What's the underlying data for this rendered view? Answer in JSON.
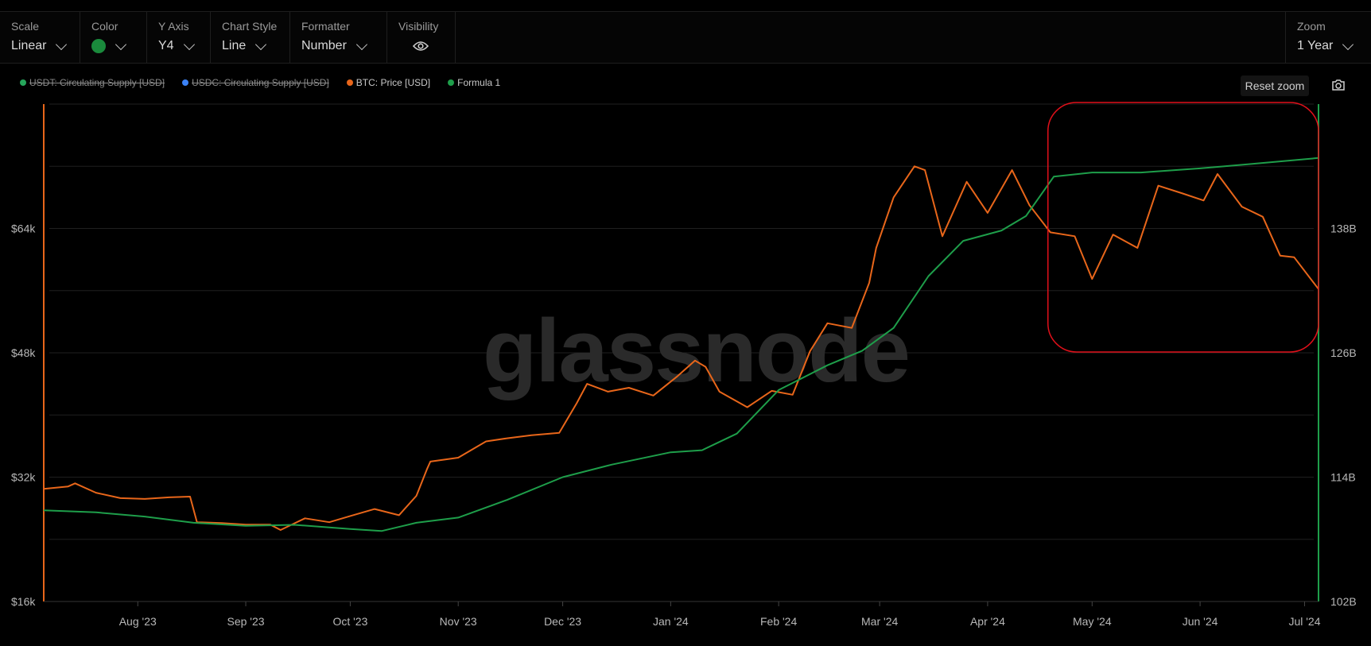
{
  "toolbar": {
    "scale": {
      "label": "Scale",
      "value": "Linear"
    },
    "color": {
      "label": "Color",
      "swatch": "#1a8a3c"
    },
    "y_axis": {
      "label": "Y Axis",
      "value": "Y4"
    },
    "chart_style": {
      "label": "Chart Style",
      "value": "Line"
    },
    "formatter": {
      "label": "Formatter",
      "value": "Number"
    },
    "visibility": {
      "label": "Visibility",
      "icon": "eye-icon"
    },
    "zoom": {
      "label": "Zoom",
      "value": "1 Year"
    }
  },
  "legend": [
    {
      "label": "USDT: Circulating Supply [USD]",
      "color": "#26a65b",
      "hidden": true
    },
    {
      "label": "USDC: Circulating Supply [USD]",
      "color": "#3b82f6",
      "hidden": true
    },
    {
      "label": "BTC: Price [USD]",
      "color": "#e8661a",
      "hidden": false
    },
    {
      "label": "Formula 1",
      "color": "#1e9e4a",
      "hidden": false
    }
  ],
  "reset_zoom": "Reset zoom",
  "watermark": "glassnode",
  "chart_data": {
    "type": "line",
    "x_ticks": [
      "Aug '23",
      "Sep '23",
      "Oct '23",
      "Nov '23",
      "Dec '23",
      "Jan '24",
      "Feb '24",
      "Mar '24",
      "Apr '24",
      "May '24",
      "Jun '24",
      "Jul '24"
    ],
    "x_range": [
      "2023-07-05",
      "2024-07-05"
    ],
    "y_left": {
      "ticks": [
        "$16k",
        "$32k",
        "$48k",
        "$64k"
      ],
      "ylim": [
        16000,
        80000
      ],
      "color": "#e8661a"
    },
    "y_right": {
      "ticks": [
        "102B",
        "114B",
        "126B",
        "138B"
      ],
      "ylim": [
        102,
        150
      ],
      "color": "#1e9e4a"
    },
    "grid": true,
    "highlight_region": {
      "x_range": [
        "2024-04-19",
        "2024-07-05"
      ],
      "color": "#e0101a"
    },
    "series": [
      {
        "name": "BTC: Price [USD]",
        "color": "#e8661a",
        "axis": "left",
        "x": [
          "2023-07-05",
          "2023-07-12",
          "2023-07-14",
          "2023-07-20",
          "2023-07-27",
          "2023-08-03",
          "2023-08-10",
          "2023-08-16",
          "2023-08-18",
          "2023-08-25",
          "2023-09-01",
          "2023-09-08",
          "2023-09-11",
          "2023-09-18",
          "2023-09-25",
          "2023-10-01",
          "2023-10-08",
          "2023-10-15",
          "2023-10-20",
          "2023-10-23",
          "2023-10-24",
          "2023-11-01",
          "2023-11-09",
          "2023-11-15",
          "2023-11-22",
          "2023-11-30",
          "2023-12-05",
          "2023-12-08",
          "2023-12-14",
          "2023-12-20",
          "2023-12-27",
          "2024-01-03",
          "2024-01-08",
          "2024-01-11",
          "2024-01-15",
          "2024-01-23",
          "2024-01-30",
          "2024-02-05",
          "2024-02-10",
          "2024-02-15",
          "2024-02-22",
          "2024-02-27",
          "2024-02-29",
          "2024-03-05",
          "2024-03-11",
          "2024-03-14",
          "2024-03-19",
          "2024-03-26",
          "2024-04-01",
          "2024-04-08",
          "2024-04-13",
          "2024-04-19",
          "2024-04-26",
          "2024-05-01",
          "2024-05-07",
          "2024-05-14",
          "2024-05-20",
          "2024-05-27",
          "2024-06-02",
          "2024-06-06",
          "2024-06-13",
          "2024-06-19",
          "2024-06-24",
          "2024-06-28",
          "2024-07-05"
        ],
        "y": [
          30500,
          30800,
          31200,
          30000,
          29300,
          29200,
          29400,
          29500,
          26200,
          26100,
          25900,
          25900,
          25200,
          26700,
          26200,
          27000,
          27900,
          27100,
          29600,
          33000,
          34000,
          34500,
          36600,
          37000,
          37400,
          37700,
          41500,
          44000,
          43000,
          43500,
          42500,
          45000,
          47000,
          46200,
          43000,
          41000,
          43100,
          42600,
          48200,
          51800,
          51200,
          57000,
          61500,
          68000,
          72000,
          71500,
          63000,
          70000,
          66000,
          71500,
          67000,
          63500,
          63000,
          57500,
          63200,
          61500,
          69500,
          68500,
          67600,
          71000,
          66800,
          65500,
          60500,
          60300,
          56200
        ]
      },
      {
        "name": "Formula 1",
        "color": "#1e9e4a",
        "axis": "right",
        "x": [
          "2023-07-05",
          "2023-07-20",
          "2023-08-03",
          "2023-08-17",
          "2023-09-01",
          "2023-09-15",
          "2023-10-01",
          "2023-10-10",
          "2023-10-20",
          "2023-11-01",
          "2023-11-15",
          "2023-12-01",
          "2023-12-15",
          "2024-01-01",
          "2024-01-10",
          "2024-01-20",
          "2024-02-01",
          "2024-02-15",
          "2024-02-25",
          "2024-03-05",
          "2024-03-15",
          "2024-03-25",
          "2024-04-05",
          "2024-04-12",
          "2024-04-20",
          "2024-05-01",
          "2024-05-15",
          "2024-06-01",
          "2024-06-15",
          "2024-07-05"
        ],
        "y": [
          110.8,
          110.6,
          110.2,
          109.6,
          109.3,
          109.4,
          109.0,
          108.8,
          109.6,
          110.1,
          111.8,
          114.0,
          115.2,
          116.4,
          116.6,
          118.2,
          122.4,
          124.8,
          126.2,
          128.4,
          133.4,
          136.8,
          137.8,
          139.2,
          143.0,
          143.4,
          143.4,
          143.8,
          144.2,
          144.8
        ]
      }
    ]
  }
}
